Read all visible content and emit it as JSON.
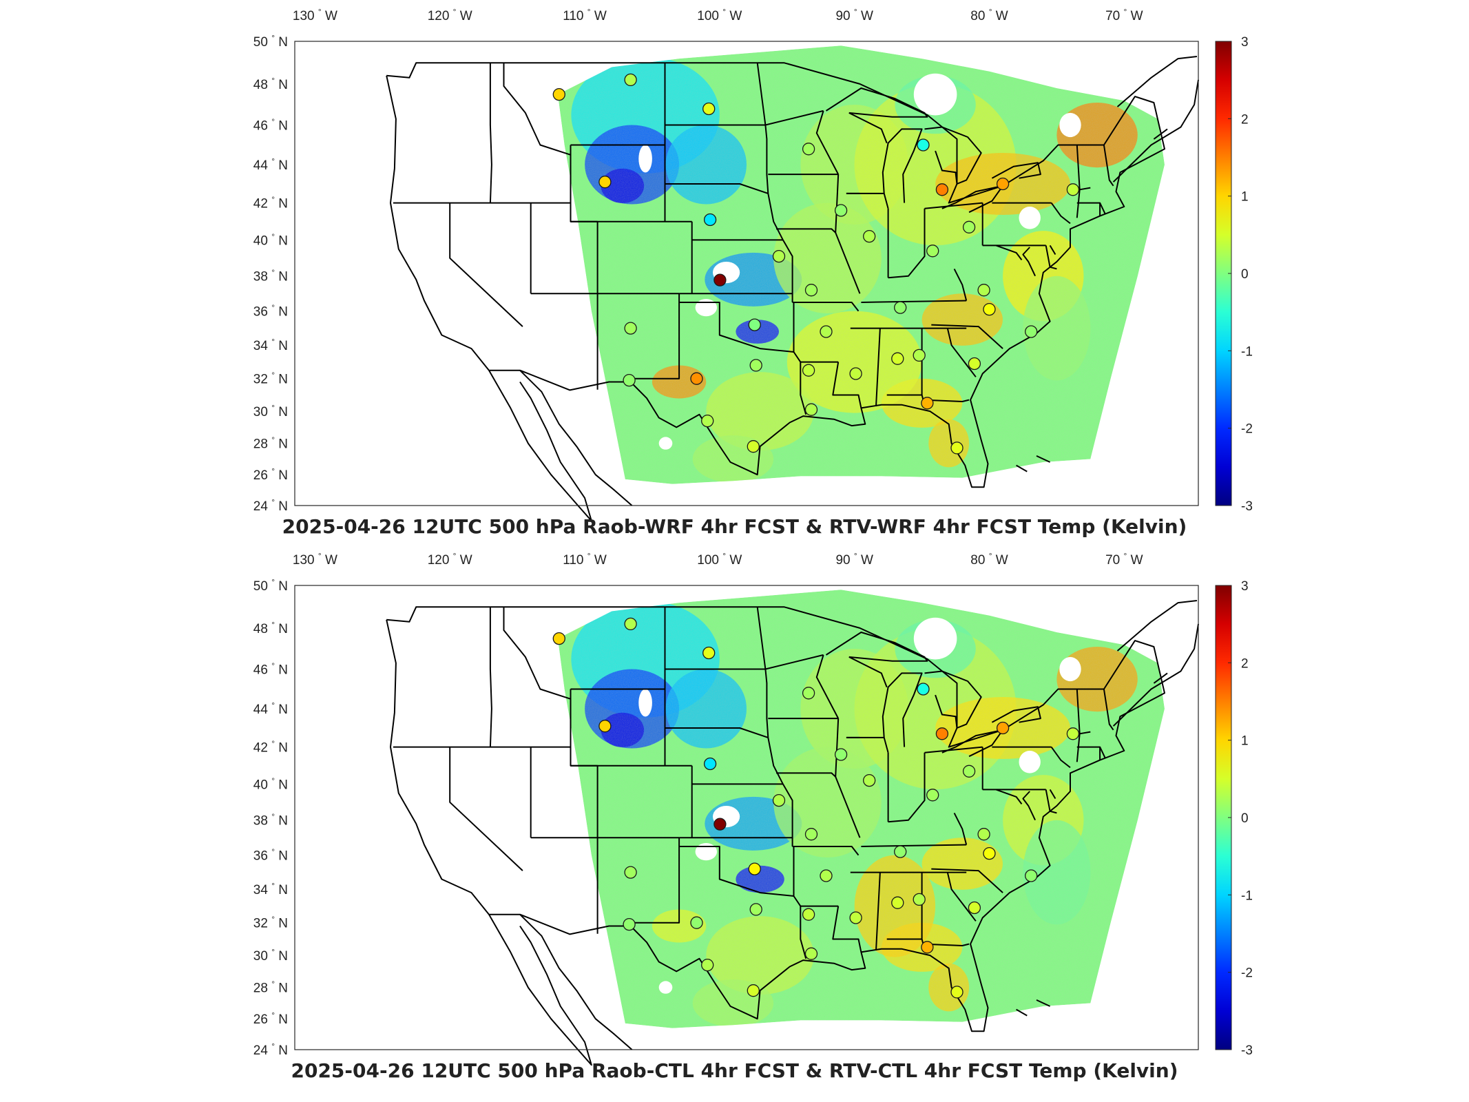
{
  "lon_labels": [
    "130",
    "120",
    "110",
    "100",
    "90",
    "80",
    "70"
  ],
  "lon_hemisphere": "W",
  "lat_labels": [
    "50",
    "48",
    "46",
    "44",
    "42",
    "40",
    "38",
    "36",
    "34",
    "32",
    "30",
    "28",
    "26",
    "24"
  ],
  "lat_hemisphere": "N",
  "degree_symbol": "°",
  "colorbar": {
    "min": -3,
    "max": 3,
    "ticks": [
      "3",
      "2",
      "1",
      "0",
      "-1",
      "-2",
      "-3"
    ],
    "colormap": "jet"
  },
  "panels": [
    {
      "title": "2025-04-26 12UTC 500 hPa Raob-WRF 4hr FCST & RTV-WRF 4hr FCST Temp (Kelvin)",
      "stations": [
        {
          "lon": -111.9,
          "lat": 47.5,
          "value": 1.0
        },
        {
          "lon": -106.6,
          "lat": 48.2,
          "value": 0.3
        },
        {
          "lon": -100.8,
          "lat": 46.8,
          "value": 0.6
        },
        {
          "lon": -108.5,
          "lat": 43.1,
          "value": 1.0
        },
        {
          "lon": -100.7,
          "lat": 41.1,
          "value": -0.9
        },
        {
          "lon": -99.97,
          "lat": 37.77,
          "value": 3.0
        },
        {
          "lon": -95.6,
          "lat": 39.1,
          "value": 0.3
        },
        {
          "lon": -93.4,
          "lat": 44.8,
          "value": 0.2
        },
        {
          "lon": -106.6,
          "lat": 35.0,
          "value": 0.2
        },
        {
          "lon": -101.7,
          "lat": 32.0,
          "value": 1.4
        },
        {
          "lon": -97.4,
          "lat": 35.2,
          "value": 0.0
        },
        {
          "lon": -97.3,
          "lat": 32.8,
          "value": 0.2
        },
        {
          "lon": -106.7,
          "lat": 31.9,
          "value": 0.1
        },
        {
          "lon": -100.9,
          "lat": 29.4,
          "value": 0.3
        },
        {
          "lon": -97.5,
          "lat": 27.8,
          "value": 0.5
        },
        {
          "lon": -93.2,
          "lat": 37.2,
          "value": 0.2
        },
        {
          "lon": -92.1,
          "lat": 34.8,
          "value": 0.3
        },
        {
          "lon": -93.4,
          "lat": 32.5,
          "value": 0.4
        },
        {
          "lon": -93.2,
          "lat": 30.1,
          "value": 0.3
        },
        {
          "lon": -89.9,
          "lat": 32.3,
          "value": 0.4
        },
        {
          "lon": -86.8,
          "lat": 33.2,
          "value": 0.5
        },
        {
          "lon": -85.2,
          "lat": 33.4,
          "value": 0.3
        },
        {
          "lon": -84.6,
          "lat": 30.5,
          "value": 1.2
        },
        {
          "lon": -82.4,
          "lat": 27.7,
          "value": 0.6
        },
        {
          "lon": -88.9,
          "lat": 40.2,
          "value": 0.3
        },
        {
          "lon": -91.0,
          "lat": 41.6,
          "value": 0.1
        },
        {
          "lon": -86.6,
          "lat": 36.2,
          "value": 0.1
        },
        {
          "lon": -84.2,
          "lat": 39.4,
          "value": 0.2
        },
        {
          "lon": -84.9,
          "lat": 45.0,
          "value": -0.6
        },
        {
          "lon": -83.5,
          "lat": 42.7,
          "value": 1.5
        },
        {
          "lon": -81.5,
          "lat": 40.7,
          "value": 0.2
        },
        {
          "lon": -79.0,
          "lat": 43.0,
          "value": 1.3
        },
        {
          "lon": -73.8,
          "lat": 42.7,
          "value": 0.4
        },
        {
          "lon": -80.4,
          "lat": 37.2,
          "value": 0.3
        },
        {
          "lon": -80.0,
          "lat": 36.1,
          "value": 0.7
        },
        {
          "lon": -76.9,
          "lat": 34.8,
          "value": 0.1
        },
        {
          "lon": -81.1,
          "lat": 32.9,
          "value": 0.5
        }
      ]
    },
    {
      "title": "2025-04-26 12UTC 500 hPa Raob-CTL 4hr FCST & RTV-CTL 4hr FCST Temp (Kelvin)",
      "stations": [
        {
          "lon": -111.9,
          "lat": 47.5,
          "value": 1.0
        },
        {
          "lon": -106.6,
          "lat": 48.2,
          "value": 0.3
        },
        {
          "lon": -100.8,
          "lat": 46.8,
          "value": 0.6
        },
        {
          "lon": -108.5,
          "lat": 43.1,
          "value": 1.0
        },
        {
          "lon": -100.7,
          "lat": 41.1,
          "value": -0.9
        },
        {
          "lon": -99.97,
          "lat": 37.77,
          "value": 3.0
        },
        {
          "lon": -95.6,
          "lat": 39.1,
          "value": 0.3
        },
        {
          "lon": -93.4,
          "lat": 44.8,
          "value": 0.2
        },
        {
          "lon": -106.6,
          "lat": 35.0,
          "value": 0.2
        },
        {
          "lon": -101.7,
          "lat": 32.0,
          "value": 0.1
        },
        {
          "lon": -97.4,
          "lat": 35.2,
          "value": 0.8
        },
        {
          "lon": -97.3,
          "lat": 32.8,
          "value": 0.2
        },
        {
          "lon": -106.7,
          "lat": 31.9,
          "value": 0.1
        },
        {
          "lon": -100.9,
          "lat": 29.4,
          "value": 0.3
        },
        {
          "lon": -97.5,
          "lat": 27.8,
          "value": 0.5
        },
        {
          "lon": -93.2,
          "lat": 37.2,
          "value": 0.2
        },
        {
          "lon": -92.1,
          "lat": 34.8,
          "value": 0.3
        },
        {
          "lon": -93.4,
          "lat": 32.5,
          "value": 0.4
        },
        {
          "lon": -93.2,
          "lat": 30.1,
          "value": 0.3
        },
        {
          "lon": -89.9,
          "lat": 32.3,
          "value": 0.4
        },
        {
          "lon": -86.8,
          "lat": 33.2,
          "value": 0.5
        },
        {
          "lon": -85.2,
          "lat": 33.4,
          "value": 0.3
        },
        {
          "lon": -84.6,
          "lat": 30.5,
          "value": 1.2
        },
        {
          "lon": -82.4,
          "lat": 27.7,
          "value": 0.6
        },
        {
          "lon": -88.9,
          "lat": 40.2,
          "value": 0.3
        },
        {
          "lon": -91.0,
          "lat": 41.6,
          "value": 0.1
        },
        {
          "lon": -86.6,
          "lat": 36.2,
          "value": 0.1
        },
        {
          "lon": -84.2,
          "lat": 39.4,
          "value": 0.2
        },
        {
          "lon": -84.9,
          "lat": 45.0,
          "value": -0.6
        },
        {
          "lon": -83.5,
          "lat": 42.7,
          "value": 1.5
        },
        {
          "lon": -81.5,
          "lat": 40.7,
          "value": 0.2
        },
        {
          "lon": -79.0,
          "lat": 43.0,
          "value": 1.3
        },
        {
          "lon": -73.8,
          "lat": 42.7,
          "value": 0.4
        },
        {
          "lon": -80.4,
          "lat": 37.2,
          "value": 0.3
        },
        {
          "lon": -80.0,
          "lat": 36.1,
          "value": 0.7
        },
        {
          "lon": -76.9,
          "lat": 34.8,
          "value": 0.1
        },
        {
          "lon": -81.1,
          "lat": 32.9,
          "value": 0.5
        }
      ]
    }
  ]
}
